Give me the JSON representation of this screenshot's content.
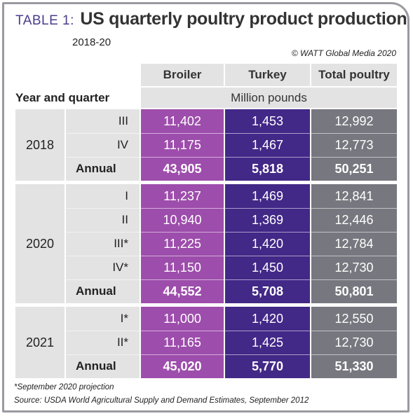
{
  "title": {
    "prefix": "TABLE 1:",
    "main": "US quarterly poultry product production",
    "subtitle": "2018-20",
    "credit": "© WATT Global Media 2020"
  },
  "table": {
    "columns": [
      "Broiler",
      "Turkey",
      "Total poultry"
    ],
    "row_header_label": "Year and quarter",
    "units": "Million pounds",
    "groups": [
      {
        "year": "2018",
        "rows": [
          {
            "quarter": "III",
            "annual": false,
            "values": [
              "11,402",
              "1,453",
              "12,992"
            ]
          },
          {
            "quarter": "IV",
            "annual": false,
            "values": [
              "11,175",
              "1,467",
              "12,773"
            ]
          },
          {
            "quarter": "Annual",
            "annual": true,
            "values": [
              "43,905",
              "5,818",
              "50,251"
            ]
          }
        ]
      },
      {
        "year": "2020",
        "rows": [
          {
            "quarter": "I",
            "annual": false,
            "values": [
              "11,237",
              "1,469",
              "12,841"
            ]
          },
          {
            "quarter": "II",
            "annual": false,
            "values": [
              "10,940",
              "1,369",
              "12,446"
            ]
          },
          {
            "quarter": "III*",
            "annual": false,
            "values": [
              "11,225",
              "1,420",
              "12,784"
            ]
          },
          {
            "quarter": "IV*",
            "annual": false,
            "values": [
              "11,150",
              "1,450",
              "12,730"
            ]
          },
          {
            "quarter": "Annual",
            "annual": true,
            "values": [
              "44,552",
              "5,708",
              "50,801"
            ]
          }
        ]
      },
      {
        "year": "2021",
        "rows": [
          {
            "quarter": "I*",
            "annual": false,
            "values": [
              "11,000",
              "1,420",
              "12,550"
            ]
          },
          {
            "quarter": "II*",
            "annual": false,
            "values": [
              "11,165",
              "1,425",
              "12,730"
            ]
          },
          {
            "quarter": "Annual",
            "annual": true,
            "values": [
              "45,020",
              "5,770",
              "51,330"
            ]
          }
        ]
      }
    ]
  },
  "footnotes": {
    "projection": "*September 2020 projection",
    "source": "Source: USDA World Agricultural Supply and Demand Estimates, September 2012"
  },
  "colors": {
    "broiler": "#9d4dab",
    "turkey": "#422887",
    "total_poultry": "#77777f",
    "header_grey": "#e3e3e3",
    "title_accent": "#4a3d8c",
    "frame": "#9a9aa0"
  }
}
